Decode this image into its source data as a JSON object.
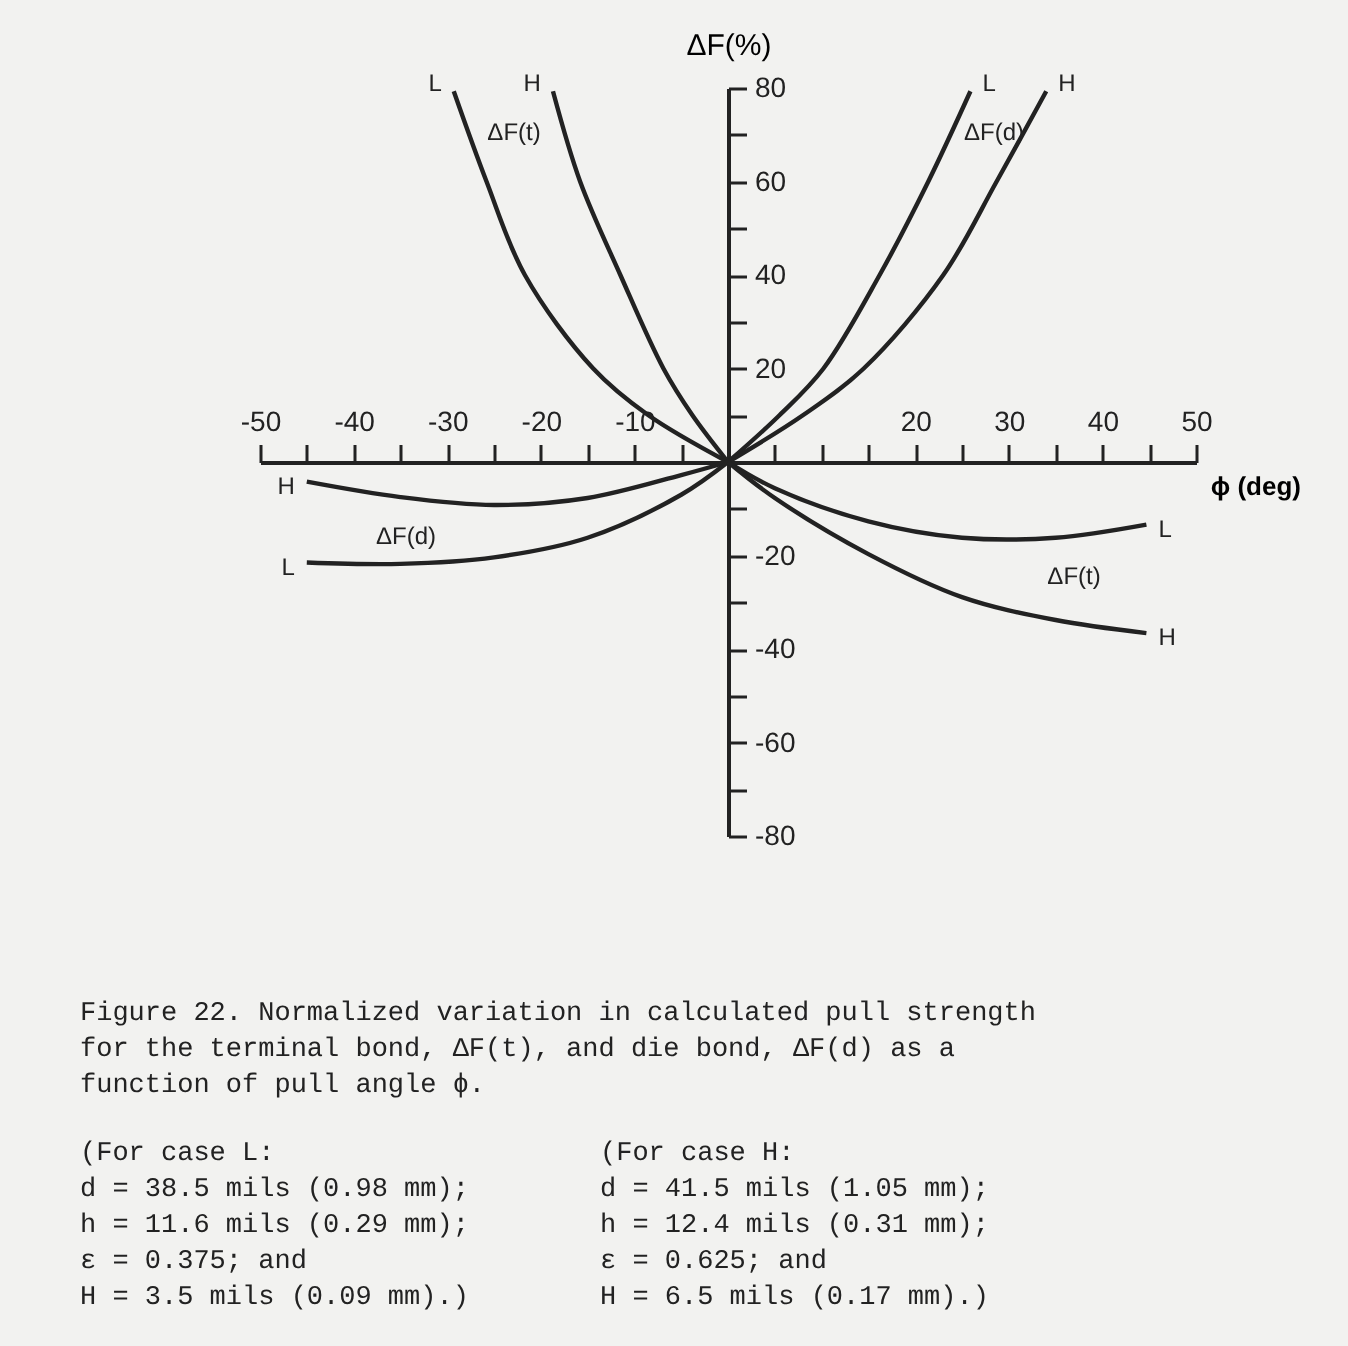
{
  "chart_data": {
    "type": "line",
    "xlabel": "ϕ (deg)",
    "ylabel": "ΔF(%)",
    "xlim": [
      -50,
      50
    ],
    "ylim": [
      -80,
      80
    ],
    "xticks": [
      -50,
      {
        "value": -45,
        "label": null
      },
      -40,
      {
        "value": -35,
        "label": null
      },
      -30,
      {
        "value": -25,
        "label": null
      },
      -20,
      {
        "value": -15,
        "label": null
      },
      -10,
      {
        "value": -5,
        "label": null
      },
      {
        "value": 5,
        "label": null
      },
      {
        "value": 10,
        "label": null
      },
      {
        "value": 15,
        "label": null
      },
      20,
      {
        "value": 25,
        "label": null
      },
      30,
      {
        "value": 35,
        "label": null
      },
      40,
      {
        "value": 45,
        "label": null
      },
      50
    ],
    "yticks": [
      80,
      {
        "value": 70,
        "label": null
      },
      60,
      {
        "value": 50,
        "label": null
      },
      40,
      {
        "value": 30,
        "label": null
      },
      20,
      {
        "value": 10,
        "label": null
      },
      {
        "value": -10,
        "label": null
      },
      -20,
      {
        "value": -30,
        "label": null
      },
      -40,
      {
        "value": -50,
        "label": null
      },
      -60,
      {
        "value": -70,
        "label": null
      },
      -80
    ],
    "grid": false,
    "legend": false,
    "marker": "none",
    "line_style": "solid",
    "series": [
      {
        "name": "L",
        "color": "#222222",
        "x": [
          -29.3,
          -25.8,
          -21.7,
          -14.4,
          -8.5,
          0
        ],
        "values": [
          79.3,
          60,
          40,
          20,
          10,
          0
        ]
      },
      {
        "name": "H",
        "color": "#222222",
        "x": [
          -18.7,
          -15.8,
          -11.5,
          -6.9,
          -3.8,
          0
        ],
        "values": [
          79.3,
          60,
          40,
          20,
          10,
          0
        ]
      },
      {
        "name": "L",
        "color": "#222222",
        "x": [
          0,
          5.5,
          10.2,
          16.2,
          21.4,
          25.9
        ],
        "values": [
          0,
          10,
          20,
          40,
          60,
          79.3
        ]
      },
      {
        "name": "H",
        "color": "#222222",
        "x": [
          0,
          8,
          14.5,
          23,
          28.7,
          34
        ],
        "values": [
          0,
          10,
          20,
          40,
          60,
          79.3
        ]
      },
      {
        "name": "H",
        "color": "#222222",
        "x": [
          -45,
          -35,
          -25,
          -15,
          -5,
          0
        ],
        "values": [
          -4.2,
          -7.5,
          -9.2,
          -7.7,
          -2.8,
          0
        ]
      },
      {
        "name": "L",
        "color": "#222222",
        "x": [
          -45,
          -35,
          -25,
          -15,
          -5,
          0
        ],
        "values": [
          -21.5,
          -21.8,
          -20.4,
          -16.2,
          -7,
          0
        ]
      },
      {
        "name": "L",
        "color": "#222222",
        "x": [
          0,
          5,
          15,
          25,
          35,
          44.7
        ],
        "values": [
          0,
          -5.6,
          -12.7,
          -16.2,
          -16.2,
          -13.4
        ]
      },
      {
        "name": "H",
        "color": "#222222",
        "x": [
          0,
          5,
          15,
          25,
          35,
          44.7
        ],
        "values": [
          0,
          -7.7,
          -19.7,
          -28.9,
          -33.8,
          -36.6
        ]
      }
    ],
    "annotations": [
      "ΔF(t)",
      "ΔF(d)",
      "ΔF(d)",
      "ΔF(t)",
      "Figure 22.  Normalized variation in calculated pull strength\nfor the terminal bond, ΔF(t), and die bond, ΔF(d) as a\nfunction of pull angle ϕ.",
      "(For case L:\n   d = 38.5 mils (0.98 mm);\n   h = 11.6 mils (0.29 mm);\n   ε = 0.375; and\n   H = 3.5 mils (0.09 mm).)",
      "(For case H:\n   d = 41.5 mils (1.05 mm);\n   h = 12.4 mils (0.31 mm);\n   ε = 0.625; and\n   H = 6.5 mils (0.17 mm).)"
    ]
  }
}
